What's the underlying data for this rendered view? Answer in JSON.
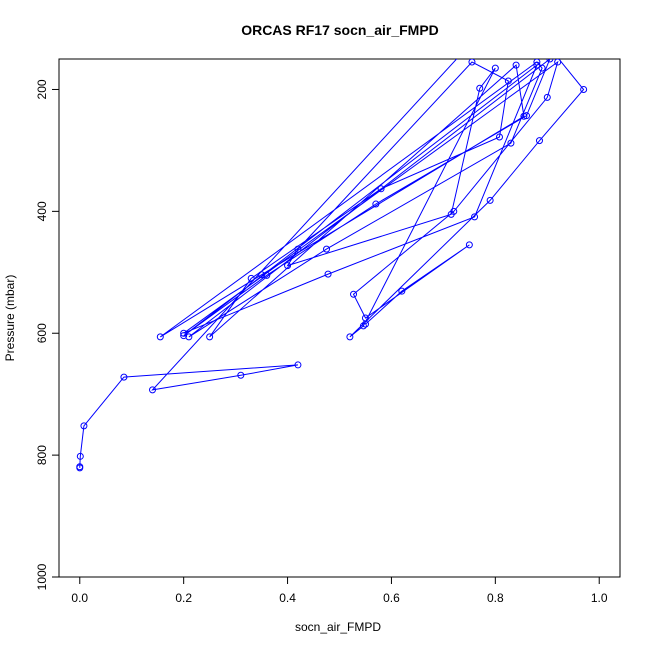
{
  "chart_data": {
    "type": "line",
    "title": "ORCAS RF17 socn_air_FMPD",
    "xlabel": "socn_air_FMPD",
    "ylabel": "Pressure (mbar)",
    "xlim": [
      -0.04,
      1.04
    ],
    "ylim": [
      1000,
      150
    ],
    "y_reversed": true,
    "x_ticks": [
      "0.0",
      "0.2",
      "0.4",
      "0.6",
      "0.8",
      "1.0"
    ],
    "y_ticks": [
      "200",
      "400",
      "600",
      "800",
      "1000"
    ],
    "grid": false,
    "legend": "none",
    "series_color": "#0000ff",
    "series": [
      {
        "points": [
          [
            0.0,
            821
          ],
          [
            0.0,
            819
          ],
          [
            0.001,
            802
          ],
          [
            0.008,
            752
          ],
          [
            0.085,
            672
          ],
          [
            0.42,
            652
          ],
          [
            0.31,
            669
          ],
          [
            0.14,
            693
          ],
          [
            0.83,
            53
          ],
          [
            0.97,
            200
          ],
          [
            0.885,
            284
          ],
          [
            0.79,
            382
          ],
          [
            0.52,
            606
          ],
          [
            0.546,
            588
          ],
          [
            0.8,
            165
          ],
          [
            0.77,
            198
          ],
          [
            0.715,
            405
          ],
          [
            0.4,
            489
          ],
          [
            0.42,
            462
          ],
          [
            0.755,
            155
          ],
          [
            0.825,
            186
          ],
          [
            0.808,
            278
          ],
          [
            0.58,
            363
          ],
          [
            0.33,
            510
          ],
          [
            0.25,
            606
          ],
          [
            0.84,
            160
          ],
          [
            0.855,
            244
          ],
          [
            0.35,
            504
          ],
          [
            0.155,
            606
          ],
          [
            0.88,
            155
          ],
          [
            0.89,
            165
          ],
          [
            0.83,
            288
          ],
          [
            0.475,
            462
          ],
          [
            0.21,
            606
          ],
          [
            0.905,
            150
          ],
          [
            0.86,
            243
          ],
          [
            0.57,
            388
          ],
          [
            0.36,
            505
          ],
          [
            0.2,
            604
          ],
          [
            0.88,
            160
          ],
          [
            0.76,
            409
          ],
          [
            0.478,
            503
          ],
          [
            0.2,
            600
          ],
          [
            0.92,
            155
          ],
          [
            0.9,
            213
          ],
          [
            0.72,
            400
          ],
          [
            0.527,
            536
          ],
          [
            0.55,
            575
          ],
          [
            0.75,
            455
          ],
          [
            0.62,
            531
          ],
          [
            0.55,
            585
          ]
        ]
      }
    ]
  }
}
